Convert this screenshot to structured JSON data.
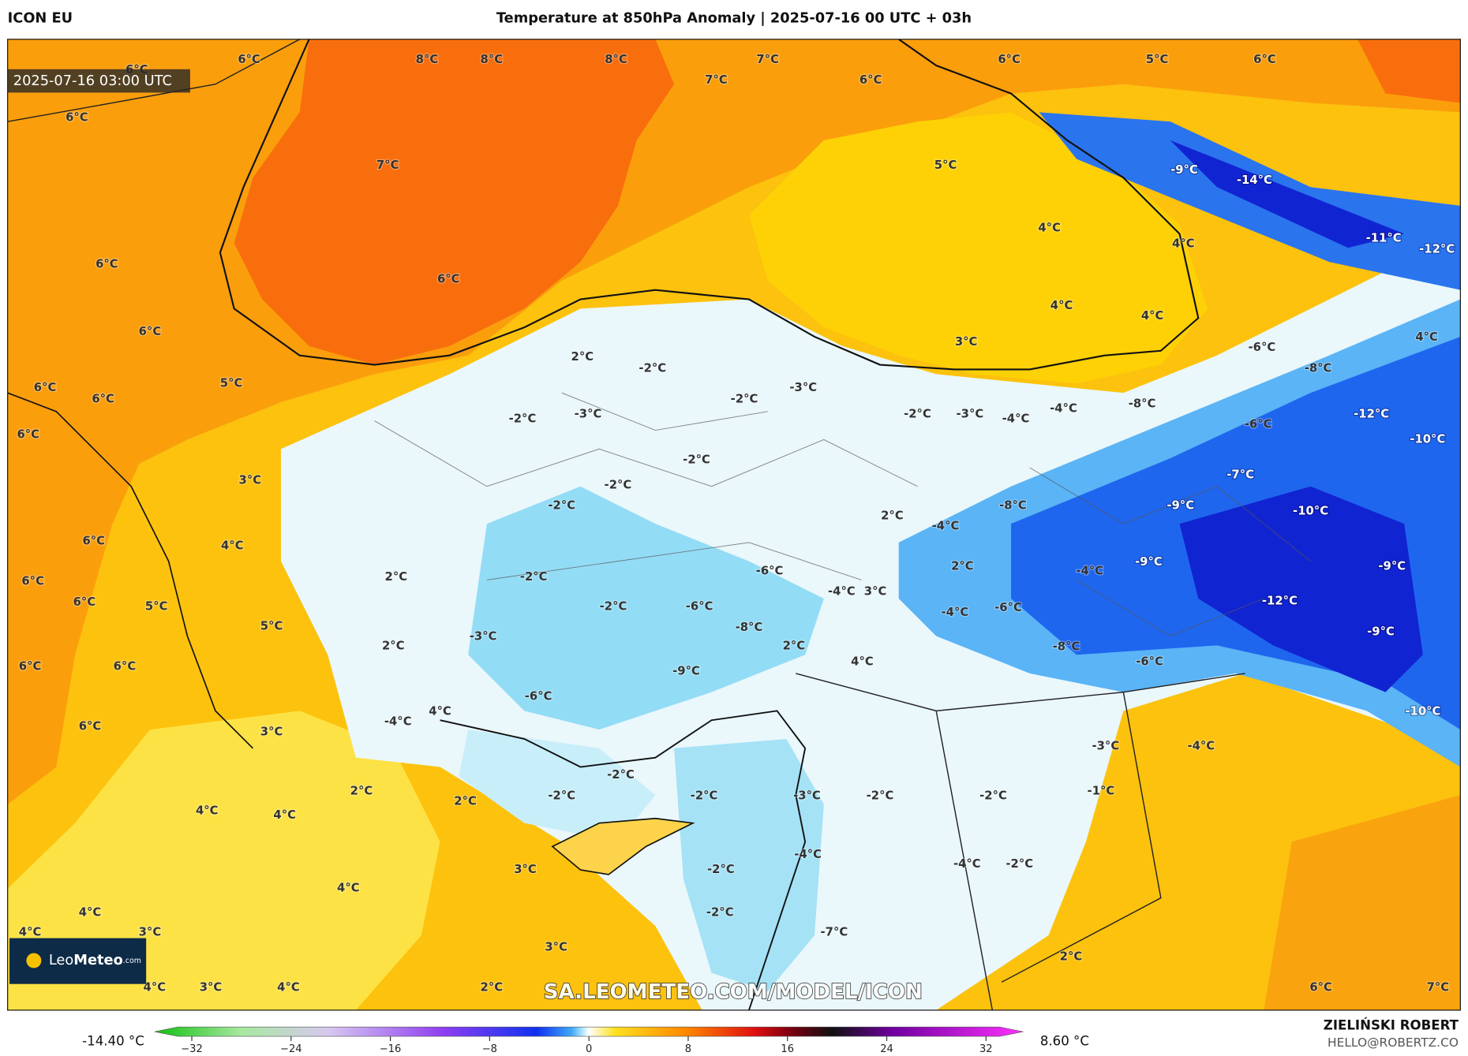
{
  "header": {
    "model": "ICON EU",
    "title": "Temperature at 850hPa Anomaly | 2025-07-16 00 UTC + 03h"
  },
  "map": {
    "timestamp": "2025-07-16 03:00 UTC",
    "labels": [
      "6°C",
      "8°C",
      "8°C",
      "8°C",
      "7°C",
      "6°C",
      "5°C",
      "6°C",
      "6°C",
      "7°C",
      "6°C",
      "6°C",
      "7°C",
      "5°C",
      "-9°C",
      "-14°C",
      "4°C",
      "4°C",
      "-11°C",
      "-12°C",
      "6°C",
      "6°C",
      "4°C",
      "4°C",
      "6°C",
      "3°C",
      "4°C",
      "2°C",
      "-6°C",
      "-2°C",
      "-8°C",
      "5°C",
      "6°C",
      "-3°C",
      "6°C",
      "-2°C",
      "-8°C",
      "-4°C",
      "-2°C",
      "-3°C",
      "-2°C",
      "-3°C",
      "-4°C",
      "-12°C",
      "6°C",
      "-6°C",
      "-10°C",
      "-2°C",
      "-2°C",
      "-7°C",
      "3°C",
      "-2°C",
      "-8°C",
      "-9°C",
      "-10°C",
      "2°C",
      "-4°C",
      "6°C",
      "4°C",
      "2°C",
      "-9°C",
      "-9°C",
      "-4°C",
      "-6°C",
      "-2°C",
      "2°C",
      "6°C",
      "-4°C",
      "3°C",
      "6°C",
      "5°C",
      "-6°C",
      "-2°C",
      "-4°C",
      "-6°C",
      "-12°C",
      "5°C",
      "-8°C",
      "-3°C",
      "-9°C",
      "2°C",
      "2°C",
      "-8°C",
      "-6°C",
      "4°C",
      "6°C",
      "6°C",
      "-9°C",
      "-6°C",
      "4°C",
      "-4°C",
      "6°C",
      "3°C",
      "-10°C",
      "-3°C",
      "-4°C",
      "-2°C",
      "2°C",
      "-1°C",
      "-2°C",
      "-2°C",
      "-3°C",
      "-2°C",
      "-2°C",
      "2°C",
      "4°C",
      "4°C",
      "-4°C",
      "-4°C",
      "-2°C",
      "3°C",
      "-2°C",
      "4°C",
      "-2°C",
      "4°C",
      "3°C",
      "4°C",
      "-7°C",
      "3°C",
      "2°C",
      "4°C",
      "3°C",
      "4°C",
      "2°C",
      "6°C",
      "7°C"
    ],
    "watermark": "SA.LEOMETEO.COM/MODEL/ICON",
    "logo": {
      "leo": "Leo",
      "meteo": "Meteo",
      "suffix": ".com"
    }
  },
  "colorbar": {
    "lim": [
      -35,
      35
    ],
    "ticks": [
      {
        "value": -32,
        "label": "−32"
      },
      {
        "value": -24,
        "label": "−24"
      },
      {
        "value": -16,
        "label": "−16"
      },
      {
        "value": -8,
        "label": "−8"
      },
      0,
      8,
      16,
      24,
      32
    ],
    "min_label": "-14.40 °C",
    "max_label": "8.60 °C"
  },
  "credits": {
    "author": "ZIELIŃSKI ROBERT",
    "email": "HELLO@ROBERTZ.CO"
  }
}
